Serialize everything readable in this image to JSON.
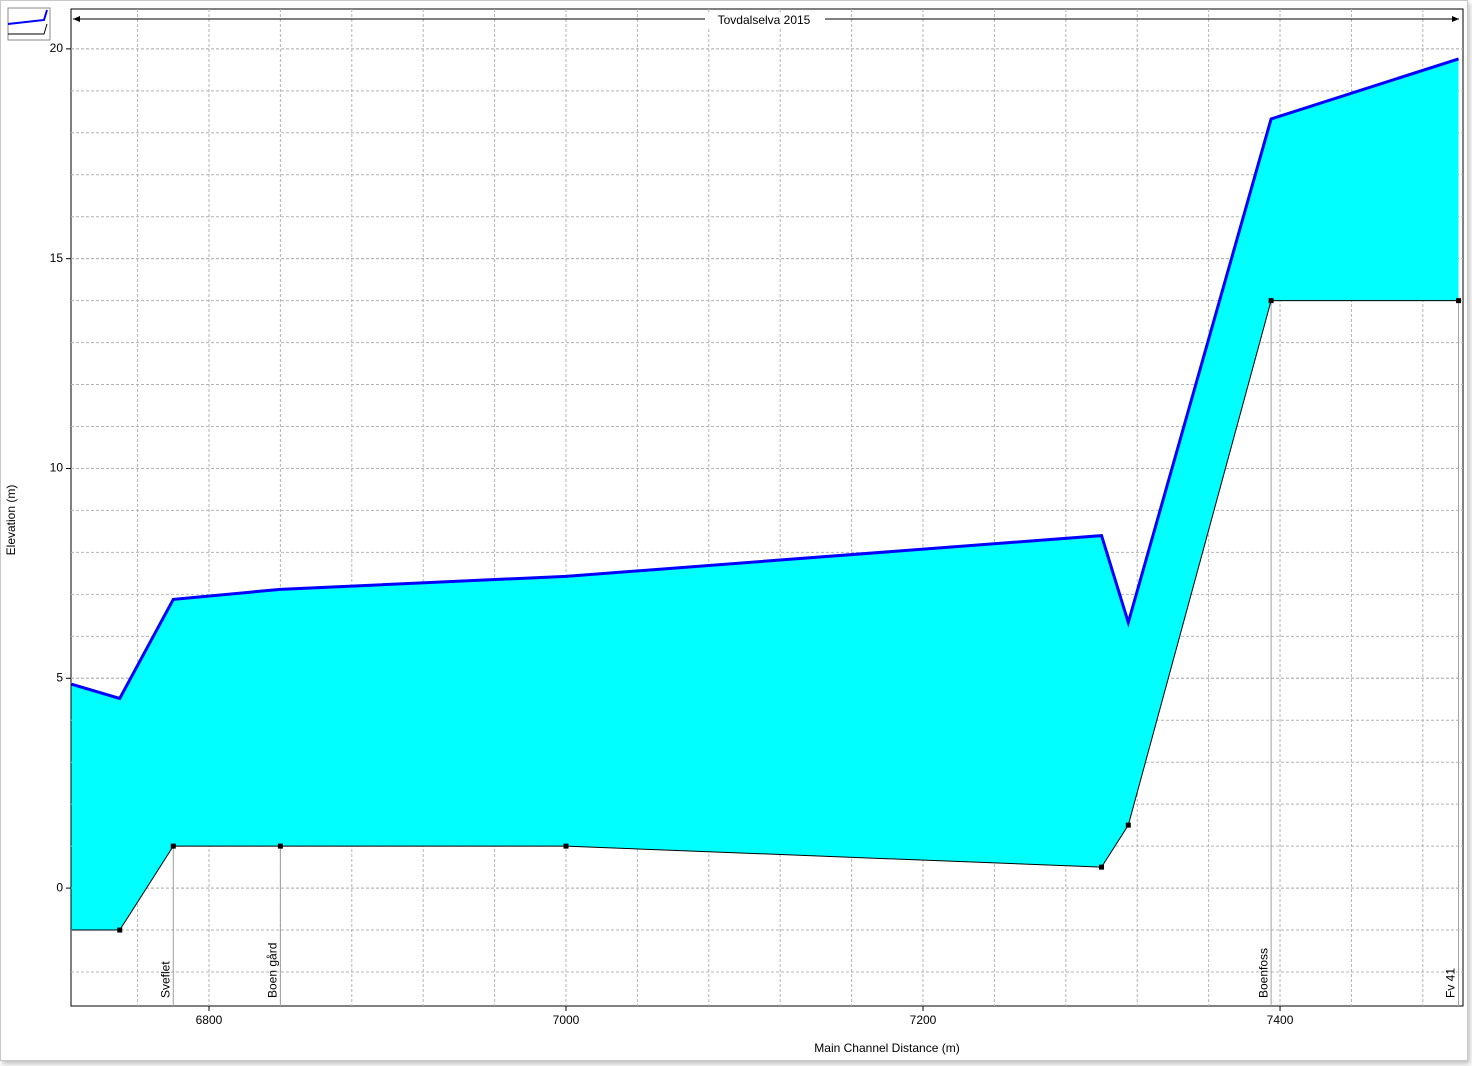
{
  "chart_data": {
    "type": "profile",
    "title": "Tovdalselva 2015",
    "xlabel": "Main Channel Distance (m)",
    "ylabel": "Elevation (m)",
    "x": [
      6723,
      6750,
      6780,
      6840,
      7000,
      7300,
      7315,
      7395,
      7500
    ],
    "series": [
      {
        "color": "#0000ff",
        "fill": "#00ffff",
        "values": [
          4.86,
          4.52,
          6.88,
          7.12,
          7.43,
          8.4,
          6.33,
          18.33,
          19.76
        ]
      },
      {
        "color": "#000000",
        "values": [
          -1,
          -1,
          1,
          1,
          1,
          0.5,
          1.5,
          14,
          14
        ]
      }
    ],
    "stations": [
      {
        "label": "Sveflet",
        "x": 6780
      },
      {
        "label": "Boen gård",
        "x": 6840
      },
      {
        "label": "Boenfoss",
        "x": 7395
      },
      {
        "label": "Fv 41",
        "x": 7500
      }
    ],
    "xlim": [
      6722.7,
      7502.5
    ],
    "ylim": [
      -2.81,
      20.95
    ],
    "xticks": [
      6800,
      7000,
      7200,
      7400
    ],
    "yticks": [
      0,
      5,
      10,
      15,
      20
    ],
    "grid": true,
    "minor_divisions": 5
  }
}
